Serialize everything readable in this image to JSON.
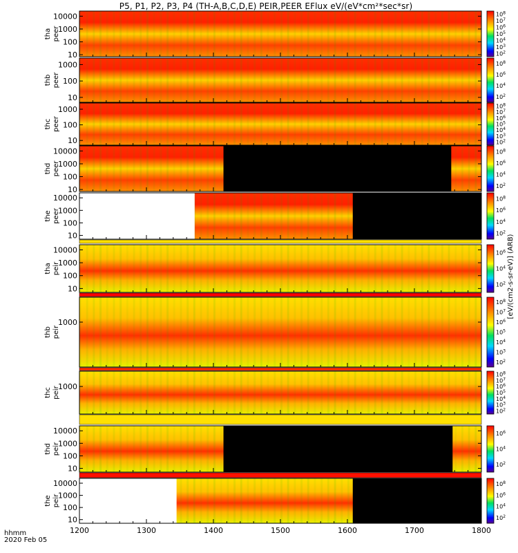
{
  "title": "P5, P1, P2, P3, P4 (TH-A,B,C,D,E) PEIR,PEER EFlux eV/(eV*cm²*sec*sr)",
  "footer": {
    "time_label": "hhmm",
    "date_label": "2020 Feb 05"
  },
  "colors": {
    "missing": "#000000",
    "background": "#ffffff"
  },
  "chart_data": {
    "type": "heatmap",
    "title": "P5, P1, P2, P3, P4 (TH-A,B,C,D,E) PEIR,PEER EFlux eV/(eV*cm²*sec*sr)",
    "x_axis": {
      "xlim": [
        1200,
        1800
      ],
      "ticks": [
        "1200",
        "1300",
        "1400",
        "1500",
        "1600",
        "1700",
        "1800"
      ],
      "label": "hhmm"
    },
    "colorbar": {
      "scale": "log",
      "clabel": "[eV/(cm2-s-sr-eV)] (ARB)",
      "tick_exps": [
        2,
        4,
        6,
        8
      ]
    },
    "panels": [
      {
        "label1": "tha",
        "label2": "peer",
        "y_ticks": [
          "10",
          "100",
          "1000",
          "10000"
        ],
        "ylim": [
          7,
          25000
        ],
        "gaps": [],
        "cb_ticks": [
          "10^2",
          "10^3",
          "10^4",
          "10^5",
          "10^6",
          "10^7",
          "10^8"
        ]
      },
      {
        "label1": "thb",
        "label2": "peer",
        "y_ticks": [
          "10",
          "100",
          "1000"
        ],
        "ylim": [
          5,
          2500
        ],
        "gaps": [],
        "cb_ticks": [
          "10^2",
          "10^4",
          "10^6",
          "10^8"
        ]
      },
      {
        "label1": "thc",
        "label2": "peer",
        "y_ticks": [
          "10",
          "100",
          "1000"
        ],
        "ylim": [
          5,
          2500
        ],
        "gaps": [],
        "cb_ticks": [
          "10^2",
          "10^3",
          "10^4",
          "10^5",
          "10^6",
          "10^7",
          "10^8"
        ]
      },
      {
        "label1": "thd",
        "label2": "peer",
        "y_ticks": [
          "10",
          "100",
          "1000",
          "10000"
        ],
        "ylim": [
          7,
          25000
        ],
        "gaps": [
          [
            1415,
            1755
          ]
        ],
        "cb_ticks": [
          "10^2",
          "10^4",
          "10^6",
          "10^8"
        ]
      },
      {
        "label1": "the",
        "label2": "peer",
        "y_ticks": [
          "10",
          "100",
          "1000",
          "10000"
        ],
        "ylim": [
          5,
          25000
        ],
        "gaps": [
          [
            1608,
            1800
          ]
        ],
        "blank": [
          [
            1200,
            1372
          ]
        ],
        "cb_ticks": [
          "10^2",
          "10^4",
          "10^6",
          "10^8"
        ]
      },
      {
        "label1": "tha",
        "label2": "peir",
        "y_ticks": [
          "10",
          "100",
          "1000",
          "10000"
        ],
        "ylim": [
          5,
          25000
        ],
        "gaps": [],
        "cb_ticks": [
          "10^2",
          "10^4",
          "10^6"
        ]
      },
      {
        "label1": "thb",
        "label2": "peir",
        "y_ticks": [
          "1000"
        ],
        "ylim": [
          3,
          25000
        ],
        "gaps": [],
        "cb_ticks": [
          "10^2",
          "10^3",
          "10^4",
          "10^5",
          "10^6",
          "10^7",
          "10^8"
        ]
      },
      {
        "label1": "thc",
        "label2": "peir",
        "y_ticks": [
          "1000"
        ],
        "ylim": [
          3,
          25000
        ],
        "gaps": [],
        "cb_ticks": [
          "10^2",
          "10^3",
          "10^4",
          "10^5",
          "10^6",
          "10^7",
          "10^8"
        ]
      },
      {
        "label1": "thd",
        "label2": "peir",
        "y_ticks": [
          "10",
          "100",
          "1000",
          "10000"
        ],
        "ylim": [
          5,
          25000
        ],
        "gaps": [
          [
            1415,
            1757
          ]
        ],
        "cb_ticks": [
          "10^2",
          "10^4",
          "10^6"
        ]
      },
      {
        "label1": "the",
        "label2": "peir",
        "y_ticks": [
          "10",
          "100",
          "1000",
          "10000"
        ],
        "ylim": [
          5,
          25000
        ],
        "gaps": [
          [
            1608,
            1800
          ]
        ],
        "blank": [
          [
            1200,
            1345
          ]
        ],
        "cb_ticks": [
          "10^2",
          "10^4",
          "10^6",
          "10^8"
        ]
      }
    ],
    "colorbar_label": "[eV/(cm2-s-sr-eV)] (ARB)"
  }
}
